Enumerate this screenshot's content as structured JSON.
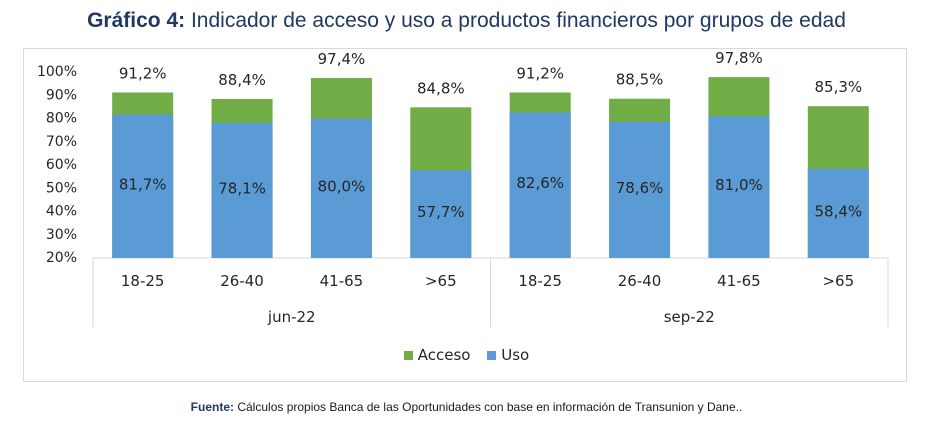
{
  "header": {
    "title_label": "Gráfico 4:",
    "title_text": "Indicador de acceso y uso a productos financieros por grupos de edad"
  },
  "source": {
    "label": "Fuente:",
    "text": "Cálculos propios Banca de las Oportunidades con base en información de Transunion y Dane.."
  },
  "legend": {
    "items": [
      {
        "label": "Acceso",
        "color": "#70AD47"
      },
      {
        "label": "Uso",
        "color": "#5B9BD5"
      }
    ]
  },
  "chart_data": {
    "type": "bar",
    "stacked": false,
    "overlapping": true,
    "title": "Gráfico 4: Indicador de acceso y uso a productos financieros por grupos de edad",
    "xlabel": "",
    "ylabel": "",
    "ylim": [
      20,
      100
    ],
    "yticks": [
      "20%",
      "30%",
      "40%",
      "50%",
      "60%",
      "70%",
      "80%",
      "90%",
      "100%"
    ],
    "yticks_values": [
      20,
      30,
      40,
      50,
      60,
      70,
      80,
      90,
      100
    ],
    "grid": false,
    "legend_position": "bottom",
    "groups": [
      "jun-22",
      "sep-22"
    ],
    "categories": [
      "18-25",
      "26-40",
      "41-65",
      ">65",
      "18-25",
      "26-40",
      "41-65",
      ">65"
    ],
    "series": [
      {
        "name": "Acceso",
        "color": "#70AD47",
        "values": [
          91.2,
          88.4,
          97.4,
          84.8,
          91.2,
          88.5,
          97.8,
          85.3
        ],
        "labels": [
          "91,2%",
          "88,4%",
          "97,4%",
          "84,8%",
          "91,2%",
          "88,5%",
          "97,8%",
          "85,3%"
        ]
      },
      {
        "name": "Uso",
        "color": "#5B9BD5",
        "values": [
          81.7,
          78.1,
          80.0,
          57.7,
          82.6,
          78.6,
          81.0,
          58.4
        ],
        "labels": [
          "81,7%",
          "78,1%",
          "80,0%",
          "57,7%",
          "82,6%",
          "78,6%",
          "81,0%",
          "58,4%"
        ]
      }
    ]
  }
}
